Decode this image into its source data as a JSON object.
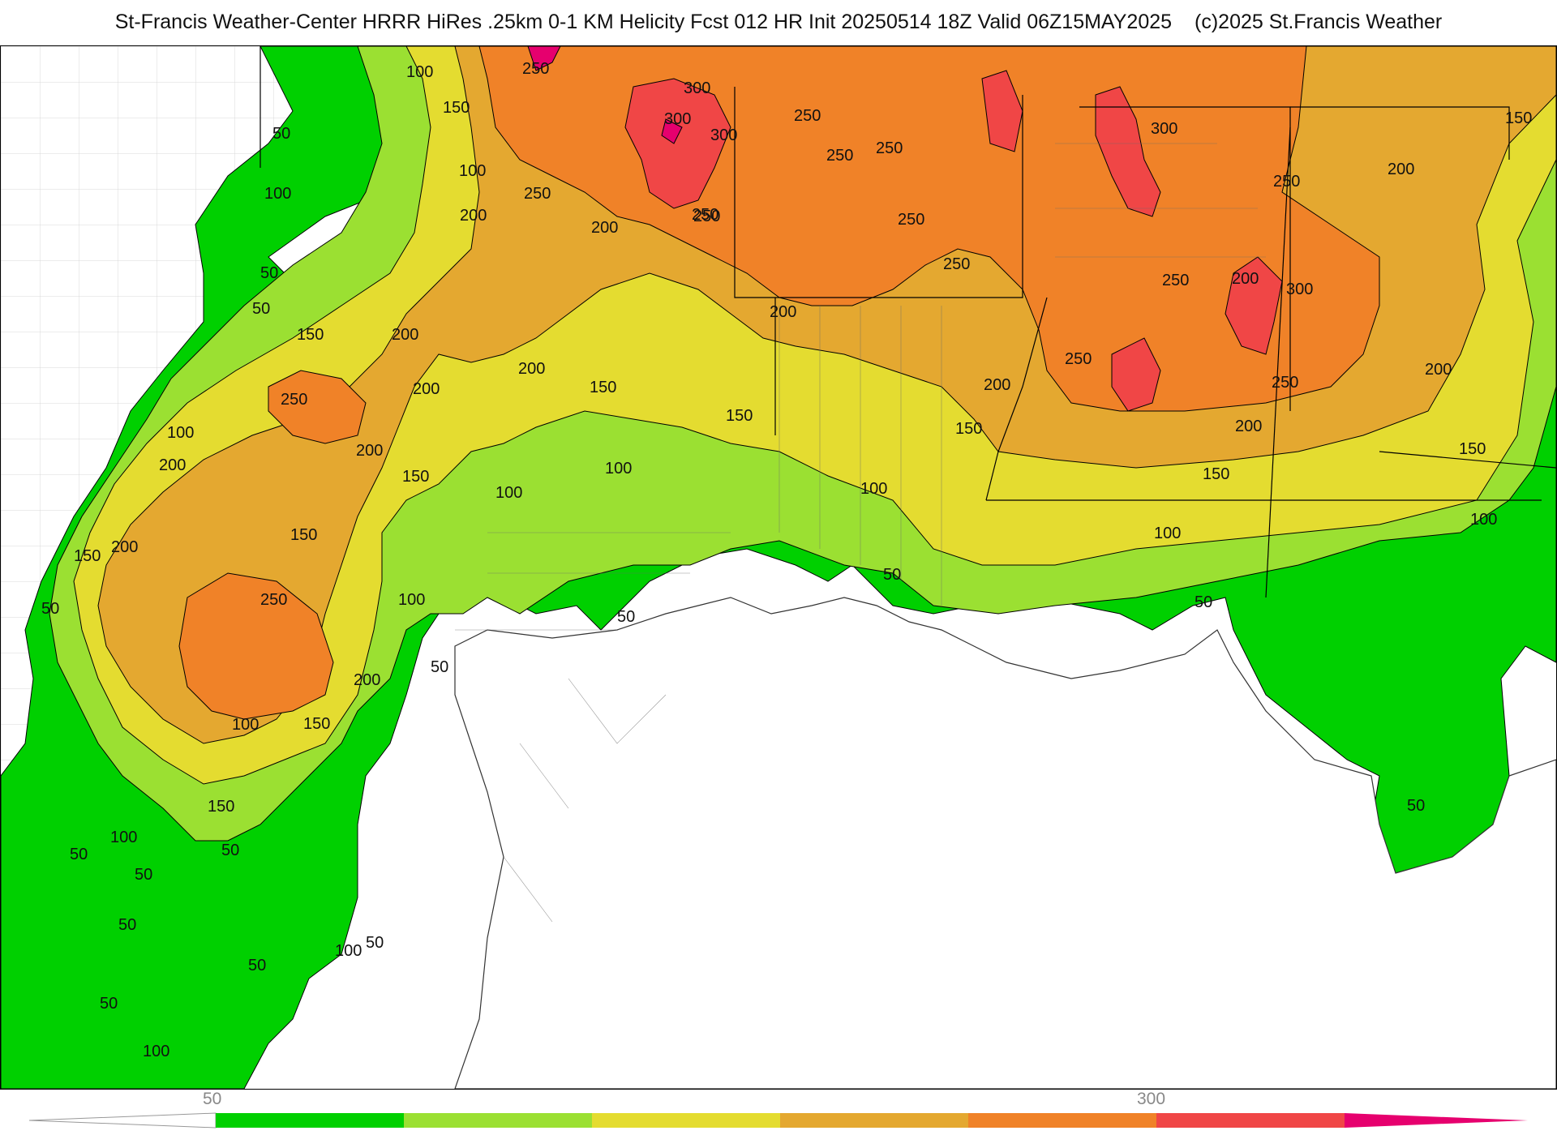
{
  "header": {
    "title": "St-Francis Weather-Center HRRR HiRes .25km 0-1 KM Helicity Fcst 012 HR Init 20250514 18Z  Valid 06Z15MAY2025",
    "copyright": "(c)2025 St.Francis Weather"
  },
  "legend": {
    "tick_labels": [
      "50",
      "300"
    ],
    "colors": {
      "low_taper": "#ffffff",
      "c50": "#00d000",
      "c100": "#9be032",
      "c150": "#e4dc30",
      "c200": "#e4a830",
      "c250": "#f08228",
      "c300": "#f04646",
      "c350": "#e6006e"
    }
  },
  "map": {
    "contour_labels": [
      "50",
      "50",
      "50",
      "50",
      "50",
      "50",
      "50",
      "50",
      "50",
      "50",
      "50",
      "50",
      "50",
      "50",
      "50",
      "50",
      "100",
      "100",
      "100",
      "100",
      "100",
      "100",
      "100",
      "100",
      "100",
      "100",
      "100",
      "100",
      "100",
      "100",
      "150",
      "150",
      "150",
      "150",
      "150",
      "150",
      "150",
      "150",
      "150",
      "150",
      "150",
      "150",
      "150",
      "200",
      "200",
      "200",
      "200",
      "200",
      "200",
      "200",
      "200",
      "200",
      "200",
      "200",
      "200",
      "200",
      "200",
      "200",
      "250",
      "250",
      "250",
      "250",
      "250",
      "250",
      "250",
      "250",
      "250",
      "250",
      "250",
      "250",
      "250",
      "250",
      "250",
      "300",
      "300",
      "300",
      "300",
      "300"
    ]
  }
}
